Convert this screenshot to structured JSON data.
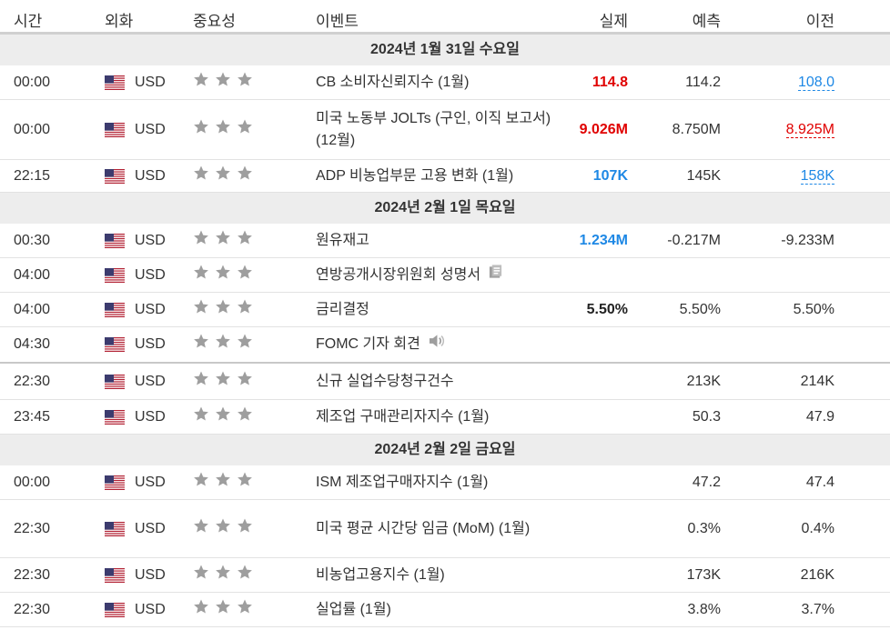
{
  "header": {
    "time": "시간",
    "currency": "외화",
    "importance": "중요성",
    "event": "이벤트",
    "actual": "실제",
    "forecast": "예측",
    "previous": "이전"
  },
  "colors": {
    "red": "#e00000",
    "blue": "#1e88e5",
    "star": "#9e9e9e",
    "day_bg": "#ededed"
  },
  "days": [
    {
      "label": "2024년 1월 31일 수요일"
    },
    {
      "label": "2024년 2월 1일 목요일"
    },
    {
      "label": "2024년 2월 2일 금요일"
    }
  ],
  "events": [
    {
      "time": "00:00",
      "currency": "USD",
      "event": "CB 소비자신뢰지수 (1월)",
      "actual": "114.8",
      "forecast": "114.2",
      "previous": "108.0"
    },
    {
      "time": "00:00",
      "currency": "USD",
      "event": "미국 노동부 JOLTs (구인, 이직 보고서) (12월)",
      "actual": "9.026M",
      "forecast": "8.750M",
      "previous": "8.925M"
    },
    {
      "time": "22:15",
      "currency": "USD",
      "event": "ADP 비농업부문 고용 변화 (1월)",
      "actual": "107K",
      "forecast": "145K",
      "previous": "158K"
    },
    {
      "time": "00:30",
      "currency": "USD",
      "event": "원유재고",
      "actual": "1.234M",
      "forecast": "-0.217M",
      "previous": "-9.233M"
    },
    {
      "time": "04:00",
      "currency": "USD",
      "event": "연방공개시장위원회 성명서",
      "actual": "",
      "forecast": "",
      "previous": "",
      "icon": "document-icon"
    },
    {
      "time": "04:00",
      "currency": "USD",
      "event": "금리결정",
      "actual": "5.50%",
      "forecast": "5.50%",
      "previous": "5.50%"
    },
    {
      "time": "04:30",
      "currency": "USD",
      "event": "FOMC 기자 회견",
      "actual": "",
      "forecast": "",
      "previous": "",
      "icon": "speaker-icon"
    },
    {
      "time": "22:30",
      "currency": "USD",
      "event": "신규 실업수당청구건수",
      "actual": "",
      "forecast": "213K",
      "previous": "214K"
    },
    {
      "time": "23:45",
      "currency": "USD",
      "event": "제조업 구매관리자지수 (1월)",
      "actual": "",
      "forecast": "50.3",
      "previous": "47.9"
    },
    {
      "time": "00:00",
      "currency": "USD",
      "event": "ISM 제조업구매자지수 (1월)",
      "actual": "",
      "forecast": "47.2",
      "previous": "47.4"
    },
    {
      "time": "22:30",
      "currency": "USD",
      "event": "미국 평균 시간당 임금 (MoM) (1월)",
      "actual": "",
      "forecast": "0.3%",
      "previous": "0.4%"
    },
    {
      "time": "22:30",
      "currency": "USD",
      "event": "비농업고용지수 (1월)",
      "actual": "",
      "forecast": "173K",
      "previous": "216K"
    },
    {
      "time": "22:30",
      "currency": "USD",
      "event": "실업률 (1월)",
      "actual": "",
      "forecast": "3.8%",
      "previous": "3.7%"
    }
  ]
}
